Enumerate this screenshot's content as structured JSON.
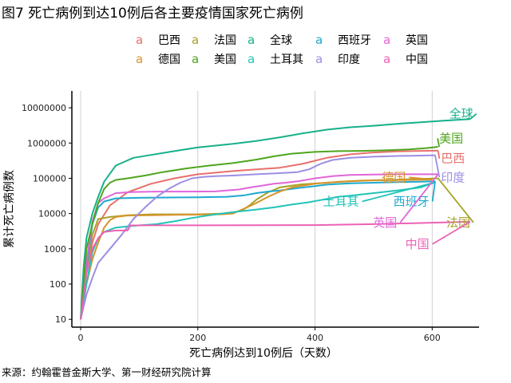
{
  "title": "图7 死亡病例到达10例后各主要疫情国家死亡病例",
  "source": "来源：约翰霍普金斯大学、第一财经研究院计算",
  "chart_data": {
    "type": "line",
    "xlabel": "死亡病例达到10例后（天数）",
    "ylabel": "累计死亡病例数",
    "x_scale": "linear",
    "y_scale": "log",
    "xlim": [
      -15,
      680
    ],
    "ylim": [
      6,
      30000000
    ],
    "x_ticks": [
      0,
      200,
      400,
      600
    ],
    "x_tick_labels": [
      "0",
      "200",
      "400",
      "600"
    ],
    "y_ticks": [
      10,
      100,
      1000,
      10000,
      100000,
      1000000,
      10000000
    ],
    "y_tick_labels": [
      "10",
      "100",
      "1000",
      "10000",
      "100000",
      "1000000",
      "10000000"
    ],
    "grid": "vertical",
    "legend_position": "top",
    "legend_marker": "a",
    "series": [
      {
        "name": "巴西",
        "color": "#E8706C",
        "points": [
          [
            0,
            10
          ],
          [
            10,
            200
          ],
          [
            20,
            1500
          ],
          [
            30,
            5000
          ],
          [
            50,
            17000
          ],
          [
            80,
            40000
          ],
          [
            120,
            70000
          ],
          [
            160,
            100000
          ],
          [
            200,
            130000
          ],
          [
            260,
            160000
          ],
          [
            300,
            180000
          ],
          [
            340,
            200000
          ],
          [
            380,
            260000
          ],
          [
            420,
            380000
          ],
          [
            460,
            480000
          ],
          [
            500,
            540000
          ],
          [
            540,
            580000
          ],
          [
            580,
            600000
          ],
          [
            610,
            610000
          ]
        ],
        "label": "巴西"
      },
      {
        "name": "法国",
        "color": "#A7A228",
        "points": [
          [
            0,
            10
          ],
          [
            10,
            250
          ],
          [
            20,
            2500
          ],
          [
            30,
            7000
          ],
          [
            50,
            8000
          ],
          [
            80,
            9000
          ],
          [
            120,
            9500
          ],
          [
            200,
            9500
          ],
          [
            250,
            10000
          ],
          [
            275,
            12000
          ],
          [
            290,
            18000
          ],
          [
            300,
            25000
          ],
          [
            320,
            40000
          ],
          [
            340,
            55000
          ],
          [
            360,
            62000
          ],
          [
            380,
            68000
          ],
          [
            420,
            75000
          ],
          [
            460,
            82000
          ],
          [
            500,
            88000
          ],
          [
            540,
            92000
          ],
          [
            580,
            96000
          ],
          [
            610,
            100000
          ]
        ],
        "label": "法国"
      },
      {
        "name": "全球",
        "color": "#17B08B",
        "points": [
          [
            0,
            10
          ],
          [
            5,
            300
          ],
          [
            10,
            2000
          ],
          [
            20,
            10000
          ],
          [
            30,
            30000
          ],
          [
            40,
            80000
          ],
          [
            60,
            230000
          ],
          [
            90,
            380000
          ],
          [
            120,
            460000
          ],
          [
            160,
            590000
          ],
          [
            200,
            750000
          ],
          [
            260,
            950000
          ],
          [
            300,
            1150000
          ],
          [
            340,
            1450000
          ],
          [
            380,
            1900000
          ],
          [
            420,
            2400000
          ],
          [
            460,
            2800000
          ],
          [
            500,
            3100000
          ],
          [
            540,
            3500000
          ],
          [
            580,
            3900000
          ],
          [
            620,
            4300000
          ],
          [
            665,
            4800000
          ]
        ],
        "label": "全球"
      },
      {
        "name": "西班牙",
        "color": "#1FA9CF",
        "points": [
          [
            0,
            10
          ],
          [
            10,
            300
          ],
          [
            20,
            5000
          ],
          [
            30,
            15000
          ],
          [
            40,
            22000
          ],
          [
            60,
            27000
          ],
          [
            100,
            28000
          ],
          [
            150,
            28500
          ],
          [
            200,
            29000
          ],
          [
            250,
            30000
          ],
          [
            280,
            33000
          ],
          [
            300,
            38000
          ],
          [
            320,
            42000
          ],
          [
            340,
            45000
          ],
          [
            360,
            50000
          ],
          [
            380,
            55000
          ],
          [
            400,
            60000
          ],
          [
            420,
            66000
          ],
          [
            460,
            72000
          ],
          [
            500,
            75000
          ],
          [
            540,
            78000
          ],
          [
            580,
            80000
          ],
          [
            605,
            82000
          ]
        ],
        "label": "西班牙"
      },
      {
        "name": "英国",
        "color": "#E066D9",
        "points": [
          [
            0,
            10
          ],
          [
            10,
            400
          ],
          [
            20,
            6000
          ],
          [
            30,
            20000
          ],
          [
            40,
            27000
          ],
          [
            60,
            38000
          ],
          [
            90,
            41000
          ],
          [
            130,
            42000
          ],
          [
            180,
            42000
          ],
          [
            230,
            42500
          ],
          [
            270,
            48000
          ],
          [
            290,
            55000
          ],
          [
            310,
            62000
          ],
          [
            330,
            70000
          ],
          [
            350,
            75000
          ],
          [
            370,
            82000
          ],
          [
            400,
            100000
          ],
          [
            430,
            115000
          ],
          [
            460,
            125000
          ],
          [
            500,
            128000
          ],
          [
            540,
            130000
          ],
          [
            580,
            130000
          ],
          [
            610,
            130000
          ]
        ],
        "label": "英国"
      },
      {
        "name": "德国",
        "color": "#D8942C",
        "points": [
          [
            0,
            10
          ],
          [
            10,
            100
          ],
          [
            20,
            500
          ],
          [
            30,
            1500
          ],
          [
            40,
            4000
          ],
          [
            50,
            6500
          ],
          [
            60,
            8000
          ],
          [
            80,
            8800
          ],
          [
            120,
            9000
          ],
          [
            160,
            9200
          ],
          [
            200,
            9300
          ],
          [
            240,
            9500
          ],
          [
            260,
            10000
          ],
          [
            280,
            14000
          ],
          [
            300,
            20000
          ],
          [
            320,
            30000
          ],
          [
            340,
            42000
          ],
          [
            360,
            55000
          ],
          [
            400,
            70000
          ],
          [
            440,
            80000
          ],
          [
            480,
            86000
          ],
          [
            520,
            88000
          ],
          [
            560,
            90000
          ],
          [
            600,
            92000
          ]
        ],
        "label": "德国"
      },
      {
        "name": "美国",
        "color": "#4FA51E",
        "points": [
          [
            0,
            10
          ],
          [
            5,
            100
          ],
          [
            10,
            1000
          ],
          [
            20,
            5000
          ],
          [
            30,
            20000
          ],
          [
            40,
            50000
          ],
          [
            50,
            75000
          ],
          [
            60,
            90000
          ],
          [
            80,
            100000
          ],
          [
            110,
            120000
          ],
          [
            140,
            150000
          ],
          [
            180,
            190000
          ],
          [
            220,
            230000
          ],
          [
            260,
            270000
          ],
          [
            300,
            340000
          ],
          [
            330,
            420000
          ],
          [
            360,
            500000
          ],
          [
            400,
            560000
          ],
          [
            440,
            590000
          ],
          [
            480,
            600000
          ],
          [
            520,
            620000
          ],
          [
            560,
            660000
          ],
          [
            590,
            720000
          ],
          [
            610,
            780000
          ]
        ],
        "label": "美国"
      },
      {
        "name": "土耳其",
        "color": "#22C3B8",
        "points": [
          [
            0,
            10
          ],
          [
            10,
            100
          ],
          [
            20,
            800
          ],
          [
            30,
            2000
          ],
          [
            40,
            3000
          ],
          [
            60,
            4000
          ],
          [
            90,
            4500
          ],
          [
            130,
            5000
          ],
          [
            160,
            6000
          ],
          [
            190,
            7500
          ],
          [
            220,
            9000
          ],
          [
            250,
            10500
          ],
          [
            270,
            11500
          ],
          [
            300,
            13000
          ],
          [
            330,
            15000
          ],
          [
            360,
            18000
          ],
          [
            390,
            21000
          ],
          [
            420,
            26000
          ],
          [
            440,
            30000
          ],
          [
            460,
            32000
          ],
          [
            480,
            35000
          ],
          [
            500,
            38000
          ],
          [
            540,
            45000
          ],
          [
            580,
            55000
          ],
          [
            605,
            77000
          ]
        ],
        "label": "土耳其"
      },
      {
        "name": "印度",
        "color": "#9C8EE3",
        "points": [
          [
            0,
            10
          ],
          [
            10,
            50
          ],
          [
            20,
            150
          ],
          [
            30,
            400
          ],
          [
            50,
            1000
          ],
          [
            70,
            2500
          ],
          [
            90,
            7000
          ],
          [
            110,
            15000
          ],
          [
            130,
            30000
          ],
          [
            150,
            50000
          ],
          [
            170,
            75000
          ],
          [
            190,
            100000
          ],
          [
            210,
            110000
          ],
          [
            230,
            115000
          ],
          [
            260,
            120000
          ],
          [
            300,
            130000
          ],
          [
            340,
            140000
          ],
          [
            370,
            150000
          ],
          [
            390,
            180000
          ],
          [
            410,
            260000
          ],
          [
            430,
            330000
          ],
          [
            460,
            380000
          ],
          [
            500,
            410000
          ],
          [
            540,
            430000
          ],
          [
            580,
            440000
          ],
          [
            605,
            450000
          ]
        ],
        "label": "印度"
      },
      {
        "name": "中国",
        "color": "#EC62B4",
        "points": [
          [
            0,
            10
          ],
          [
            10,
            200
          ],
          [
            20,
            1000
          ],
          [
            30,
            2000
          ],
          [
            40,
            3000
          ],
          [
            60,
            3300
          ],
          [
            80,
            3300
          ],
          [
            85,
            4600
          ],
          [
            120,
            4630
          ],
          [
            200,
            4640
          ],
          [
            300,
            4650
          ],
          [
            400,
            4700
          ],
          [
            500,
            5000
          ],
          [
            580,
            5400
          ],
          [
            640,
            5700
          ],
          [
            665,
            5900
          ]
        ],
        "label": "中国"
      }
    ],
    "labels": [
      {
        "text": "全球",
        "color": "#17B08B",
        "x": 670,
        "y": 5200000,
        "anchor_x": 665,
        "anchor_y": 4800000,
        "ha": "end"
      },
      {
        "text": "美国",
        "color": "#4FA51E",
        "x": 612,
        "y": 1050000,
        "anchor_x": 612,
        "anchor_y": 780000,
        "ha": "start"
      },
      {
        "text": "巴西",
        "color": "#E8706C",
        "x": 615,
        "y": 280000,
        "anchor_x": 610,
        "anchor_y": 610000,
        "ha": "start"
      },
      {
        "text": "印度",
        "color": "#9C8EE3",
        "x": 615,
        "y": 82000,
        "anchor_x": 605,
        "anchor_y": 450000,
        "ha": "start"
      },
      {
        "text": "德国",
        "color": "#D8942C",
        "x": 555,
        "y": 82000,
        "anchor_x": 600,
        "anchor_y": 92000,
        "ha": "end"
      },
      {
        "text": "土耳其",
        "color": "#22C3B8",
        "x": 475,
        "y": 17000,
        "anchor_x": 605,
        "anchor_y": 77000,
        "ha": "end"
      },
      {
        "text": "西班牙",
        "color": "#1FA9CF",
        "x": 595,
        "y": 17000,
        "anchor_x": 605,
        "anchor_y": 82000,
        "ha": "end"
      },
      {
        "text": "英国",
        "color": "#E066D9",
        "x": 540,
        "y": 4300,
        "anchor_x": 610,
        "anchor_y": 130000,
        "ha": "end"
      },
      {
        "text": "法国",
        "color": "#A7A228",
        "x": 665,
        "y": 4300,
        "anchor_x": 610,
        "anchor_y": 100000,
        "ha": "end"
      },
      {
        "text": "中国",
        "color": "#EC62B4",
        "x": 595,
        "y": 1050,
        "anchor_x": 665,
        "anchor_y": 5900,
        "ha": "end"
      }
    ]
  }
}
